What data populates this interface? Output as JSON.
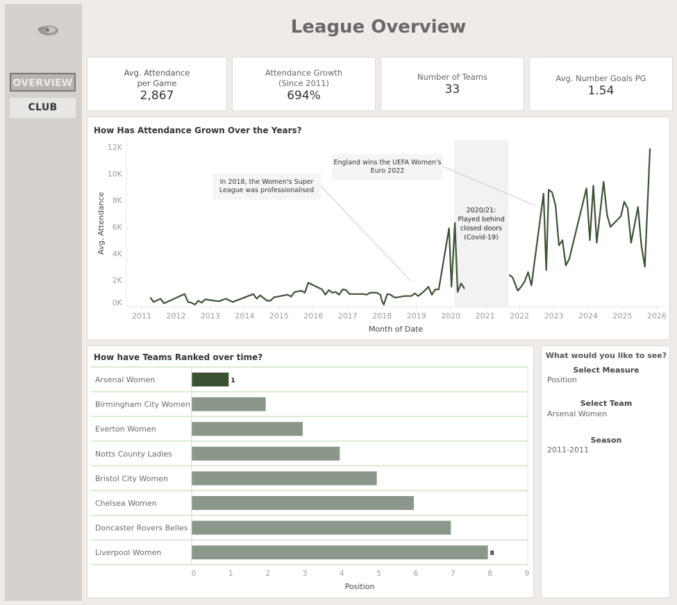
{
  "page": {
    "title": "League Overview"
  },
  "sidebar": {
    "logo": "football-logo",
    "items": [
      {
        "label": "OVERVIEW",
        "active": true
      },
      {
        "label": "CLUB",
        "active": false
      }
    ]
  },
  "kpis": [
    {
      "label_line1": "Avg. Attendance",
      "label_line2": "per Game",
      "value": "2,867"
    },
    {
      "label_line1": "Attendance Growth",
      "label_line2": "(Since 2011)",
      "value": "694%"
    },
    {
      "label_line1": "Number of Teams",
      "label_line2": "",
      "value": "33"
    },
    {
      "label_line1": "Avg. Number Goals PG",
      "label_line2": "",
      "value": "1.54"
    }
  ],
  "filters": {
    "heading": "What would you like to see?",
    "measure": {
      "label": "Select Measure",
      "value": "Position"
    },
    "team": {
      "label": "Select Team",
      "value": "Arsenal Women"
    },
    "season": {
      "label": "Season",
      "value": "2011-2011"
    }
  },
  "colors": {
    "line": "#3b5134",
    "bar_highlight": "#3b5134",
    "bar": "#8a978a",
    "covid_band": "#f2f2f2",
    "row_divider": "#cfe6c4"
  },
  "chart_data": [
    {
      "type": "line",
      "title": "How Has Attendance Grown Over the Years?",
      "xlabel": "Month of Date",
      "ylabel": "Avg. Attendance",
      "x_ticks": [
        "2011",
        "2012",
        "2013",
        "2014",
        "2015",
        "2016",
        "2017",
        "2018",
        "2019",
        "2020",
        "2021",
        "2022",
        "2023",
        "2024",
        "2025",
        "2026"
      ],
      "y_ticks": [
        "0K",
        "2K",
        "4K",
        "6K",
        "8K",
        "10K",
        "12K"
      ],
      "xlim": [
        2010.8,
        2026.2
      ],
      "ylim": [
        0,
        12000
      ],
      "grid": false,
      "annotations": [
        {
          "text_lines": [
            "In 2018, the Women's Super",
            "League was professionalised"
          ],
          "target": [
            2018.85,
            1900
          ]
        },
        {
          "text_lines": [
            "England wins the UEFA Women's",
            "Euro 2022"
          ],
          "target": [
            2022.45,
            7600
          ]
        }
      ],
      "band": {
        "from": 2020.1,
        "to": 2021.67,
        "text_lines": [
          "2020/21:",
          "Played behind",
          "closed doors",
          "(Covid-19)"
        ]
      },
      "series": [
        {
          "name": "pre_covid",
          "points": [
            [
              2011.25,
              700
            ],
            [
              2011.35,
              350
            ],
            [
              2011.55,
              600
            ],
            [
              2011.65,
              250
            ],
            [
              2012.25,
              950
            ],
            [
              2012.35,
              350
            ],
            [
              2012.45,
              300
            ],
            [
              2012.55,
              150
            ],
            [
              2012.65,
              450
            ],
            [
              2012.75,
              300
            ],
            [
              2012.85,
              550
            ],
            [
              2013.25,
              400
            ],
            [
              2013.45,
              600
            ],
            [
              2013.65,
              350
            ],
            [
              2014.25,
              950
            ],
            [
              2014.35,
              600
            ],
            [
              2014.45,
              850
            ],
            [
              2014.65,
              450
            ],
            [
              2014.75,
              450
            ],
            [
              2014.85,
              700
            ],
            [
              2015.25,
              900
            ],
            [
              2015.35,
              750
            ],
            [
              2015.45,
              1100
            ],
            [
              2015.65,
              1200
            ],
            [
              2015.75,
              1050
            ],
            [
              2015.85,
              1800
            ],
            [
              2016.25,
              1300
            ],
            [
              2016.35,
              900
            ],
            [
              2016.45,
              1250
            ],
            [
              2016.55,
              1050
            ],
            [
              2016.65,
              1100
            ],
            [
              2016.75,
              900
            ],
            [
              2016.85,
              1300
            ],
            [
              2016.95,
              1250
            ],
            [
              2017.05,
              950
            ],
            [
              2017.45,
              950
            ],
            [
              2017.55,
              900
            ],
            [
              2017.65,
              1050
            ],
            [
              2017.85,
              1050
            ],
            [
              2017.95,
              900
            ],
            [
              2018.0,
              400
            ],
            [
              2018.05,
              150
            ],
            [
              2018.15,
              950
            ],
            [
              2018.25,
              900
            ],
            [
              2018.35,
              700
            ],
            [
              2018.45,
              700
            ],
            [
              2018.65,
              800
            ],
            [
              2018.85,
              800
            ],
            [
              2018.95,
              1000
            ],
            [
              2019.05,
              800
            ],
            [
              2019.2,
              1100
            ],
            [
              2019.35,
              1500
            ],
            [
              2019.45,
              900
            ],
            [
              2019.55,
              1300
            ],
            [
              2019.65,
              1300
            ],
            [
              2019.95,
              5900
            ],
            [
              2020.02,
              1500
            ],
            [
              2020.12,
              6300
            ],
            [
              2020.2,
              1100
            ],
            [
              2020.3,
              1750
            ],
            [
              2020.4,
              1350
            ]
          ]
        },
        {
          "name": "post_covid",
          "points": [
            [
              2021.7,
              2400
            ],
            [
              2021.8,
              2200
            ],
            [
              2021.95,
              1200
            ],
            [
              2022.05,
              1500
            ],
            [
              2022.15,
              1900
            ],
            [
              2022.25,
              2600
            ],
            [
              2022.35,
              1600
            ],
            [
              2022.45,
              3600
            ],
            [
              2022.7,
              8500
            ],
            [
              2022.78,
              2750
            ],
            [
              2022.85,
              8800
            ],
            [
              2022.95,
              8600
            ],
            [
              2023.05,
              7600
            ],
            [
              2023.15,
              4600
            ],
            [
              2023.25,
              5000
            ],
            [
              2023.35,
              3100
            ],
            [
              2023.45,
              3600
            ],
            [
              2023.95,
              8900
            ],
            [
              2024.05,
              5000
            ],
            [
              2024.15,
              9100
            ],
            [
              2024.25,
              4800
            ],
            [
              2024.45,
              9400
            ],
            [
              2024.55,
              6900
            ],
            [
              2024.65,
              6000
            ],
            [
              2024.95,
              6800
            ],
            [
              2025.05,
              7900
            ],
            [
              2025.15,
              7400
            ],
            [
              2025.25,
              4800
            ],
            [
              2025.45,
              7500
            ],
            [
              2025.55,
              4600
            ],
            [
              2025.65,
              3000
            ],
            [
              2025.8,
              11900
            ]
          ]
        }
      ]
    },
    {
      "type": "bar",
      "orientation": "horizontal",
      "title": "How have Teams Ranked over time?",
      "xlabel": "Position",
      "categories": [
        "Arsenal Women",
        "Birmingham City Women",
        "Everton Women",
        "Notts County Ladies",
        "Bristol City Women",
        "Chelsea Women",
        "Doncaster Rovers Belles",
        "Liverpool Women"
      ],
      "values": [
        1,
        2,
        3,
        4,
        5,
        6,
        7,
        8
      ],
      "highlight": "Arsenal Women",
      "data_labels": {
        "Arsenal Women": "1",
        "Liverpool Women": "8"
      },
      "x_ticks": [
        "0",
        "1",
        "2",
        "3",
        "4",
        "5",
        "6",
        "7",
        "8",
        "9"
      ],
      "xlim": [
        0,
        9
      ]
    }
  ]
}
